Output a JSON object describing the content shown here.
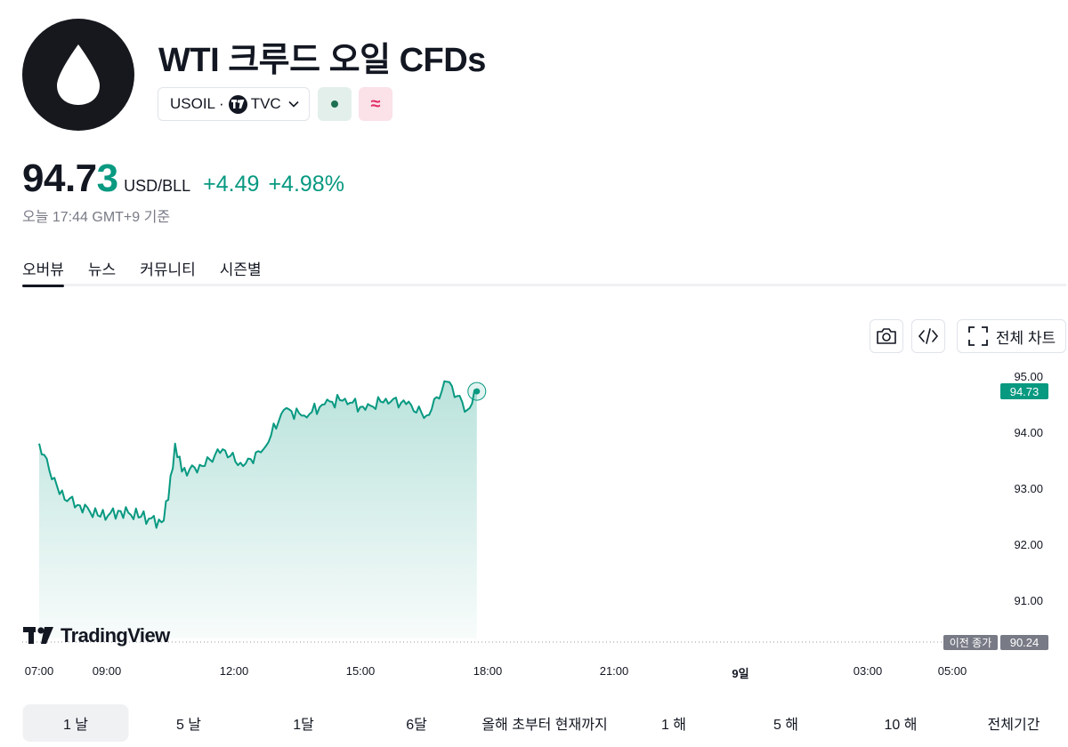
{
  "header": {
    "title": "WTI 크루드 오일 CFDs",
    "logo_icon": "oil-drop-icon",
    "symbol": "USOIL",
    "separator": "·",
    "exchange": "TVC",
    "status_open_icon": "market-open-dot-icon",
    "status_delayed_symbol": "≈"
  },
  "quote": {
    "price_main": "94.7",
    "price_last_digit": "3",
    "unit": "USD/BLL",
    "change": "+4.49",
    "change_percent": "+4.98%",
    "timestamp": "오늘 17:44 GMT+9 기준"
  },
  "tabs": [
    {
      "label": "오버뷰",
      "active": true
    },
    {
      "label": "뉴스",
      "active": false
    },
    {
      "label": "커뮤니티",
      "active": false
    },
    {
      "label": "시즌별",
      "active": false
    }
  ],
  "toolbar": {
    "camera_icon": "camera-icon",
    "embed_icon": "code-embed-icon",
    "fullscreen_icon": "fullscreen-icon",
    "full_chart_label": "전체 차트"
  },
  "chart_data": {
    "type": "area",
    "x": [
      "07:00",
      "07:30",
      "08:00",
      "08:30",
      "09:00",
      "09:30",
      "10:00",
      "10:10",
      "10:20",
      "10:30",
      "11:00",
      "11:30",
      "12:00",
      "12:30",
      "13:00",
      "13:30",
      "14:00",
      "14:30",
      "15:00",
      "15:30",
      "16:00",
      "16:30",
      "17:00",
      "17:30",
      "17:44"
    ],
    "values": [
      93.8,
      92.9,
      92.7,
      92.5,
      92.6,
      92.5,
      92.4,
      92.8,
      93.8,
      93.3,
      93.4,
      93.7,
      93.4,
      93.7,
      94.4,
      94.3,
      94.5,
      94.6,
      94.4,
      94.6,
      94.5,
      94.3,
      94.9,
      94.4,
      94.73
    ],
    "x_ticks": [
      "07:00",
      "09:00",
      "12:00",
      "15:00",
      "18:00",
      "21:00",
      "9일",
      "03:00",
      "05:00"
    ],
    "y_ticks": [
      "95.00",
      "94.00",
      "93.00",
      "92.00",
      "91.00"
    ],
    "ylim": [
      90.0,
      95.3
    ],
    "last_price_label": "94.73",
    "previous_close_label": "이전 종가",
    "previous_close_value": "90.24",
    "line_color": "#089981",
    "watermark": "TradingView"
  },
  "ranges": [
    {
      "label": "1 날",
      "active": true
    },
    {
      "label": "5 날",
      "active": false
    },
    {
      "label": "1달",
      "active": false
    },
    {
      "label": "6달",
      "active": false
    },
    {
      "label": "올해 초부터 현재까지",
      "active": false
    },
    {
      "label": "1 해",
      "active": false
    },
    {
      "label": "5 해",
      "active": false
    },
    {
      "label": "10 해",
      "active": false
    },
    {
      "label": "전체기간",
      "active": false
    }
  ],
  "colors": {
    "up": "#089981",
    "text": "#131722",
    "muted": "#787b86"
  }
}
